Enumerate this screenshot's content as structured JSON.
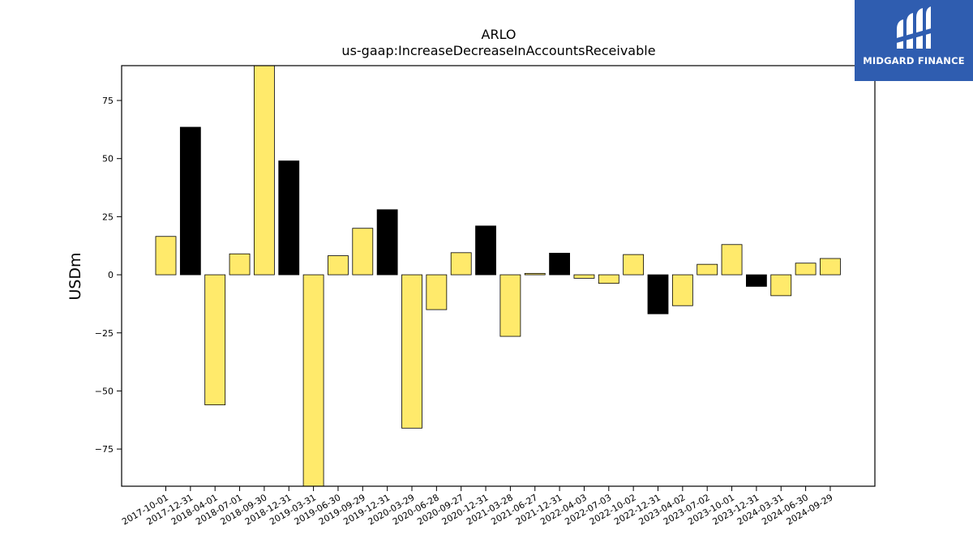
{
  "logo": {
    "text": "MIDGARD FINANCE",
    "icon": "midgard-logo-icon",
    "bg": "#2f5db0"
  },
  "chart_data": {
    "type": "bar",
    "title": "ARLO",
    "subtitle": "us-gaap:IncreaseDecreaseInAccountsReceivable",
    "ylabel": "USDm",
    "xlabel": "",
    "ylim": [
      -91,
      90
    ],
    "yticks": [
      -75,
      -50,
      -25,
      0,
      25,
      50,
      75
    ],
    "ytick_labels": [
      "−75",
      "−50",
      "−25",
      "0",
      "25",
      "50",
      "75"
    ],
    "grid": false,
    "colors": {
      "quarter": "#ffea6b",
      "year_end": "#000000"
    },
    "categories": [
      "2017-10-01",
      "2017-12-31",
      "2018-04-01",
      "2018-07-01",
      "2018-09-30",
      "2018-12-31",
      "2019-03-31",
      "2019-06-30",
      "2019-09-29",
      "2019-12-31",
      "2020-03-29",
      "2020-06-28",
      "2020-09-27",
      "2020-12-31",
      "2021-03-28",
      "2021-06-27",
      "2021-12-31",
      "2022-04-03",
      "2022-07-03",
      "2022-10-02",
      "2022-12-31",
      "2023-04-02",
      "2023-07-02",
      "2023-10-01",
      "2023-12-31",
      "2024-03-31",
      "2024-06-30",
      "2024-09-29"
    ],
    "values": [
      16.5,
      63.5,
      -56,
      9,
      90,
      49,
      -91,
      8.2,
      20,
      28,
      -66,
      -15,
      9.5,
      21,
      -26.5,
      0.6,
      9.3,
      -1.5,
      -3.7,
      8.7,
      -16.8,
      -13.3,
      4.5,
      13,
      -5,
      -9,
      5,
      7
    ],
    "year_end": [
      false,
      true,
      false,
      false,
      false,
      true,
      false,
      false,
      false,
      true,
      false,
      false,
      false,
      true,
      false,
      false,
      true,
      false,
      false,
      false,
      true,
      false,
      false,
      false,
      true,
      false,
      false,
      false
    ]
  }
}
